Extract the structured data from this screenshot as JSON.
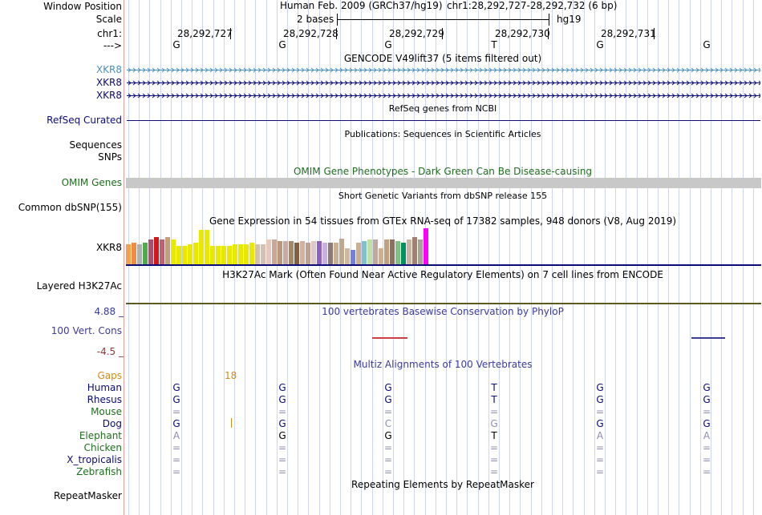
{
  "header": {
    "window_position_label": "Window Position",
    "scale_label": "Scale",
    "chrom_label": "chr1:",
    "strand_label": "--->",
    "assembly": "Human Feb. 2009 (GRCh37/hg19)",
    "position": "chr1:28,292,727-28,292,732 (6 bp)",
    "scale_text": "2 bases",
    "db": "hg19",
    "coords": [
      "28,292,727",
      "28,292,728",
      "28,292,729",
      "28,292,730",
      "28,292,731"
    ],
    "bases": [
      "G",
      "G",
      "G",
      "T",
      "G",
      "G"
    ]
  },
  "gencode": {
    "title": "GENCODE V49lift37 (5 items filtered out)",
    "items": [
      {
        "label": "XKR8",
        "color": "#4a90c0"
      },
      {
        "label": "XKR8",
        "color": "#0c0c78"
      },
      {
        "label": "XKR8",
        "color": "#0c0c78"
      }
    ]
  },
  "refseq": {
    "title": "RefSeq genes from NCBI",
    "label": "RefSeq Curated",
    "color": "#0c0c78"
  },
  "publications": {
    "title": "Publications: Sequences in Scientific Articles",
    "label1": "Sequences",
    "label2": "SNPs"
  },
  "omim": {
    "title": "OMIM Gene Phenotypes - Dark Green Can Be Disease-causing",
    "label": "OMIM Genes",
    "color": "#1e6e1e"
  },
  "dbsnp": {
    "title": "Short Genetic Variants from dbSNP release 155",
    "label": "Common dbSNP(155)"
  },
  "gtex": {
    "title": "Gene Expression in 54 tissues from GTEx RNA-seq of 17382 samples, 948 donors (V8, Aug 2019)",
    "label": "XKR8",
    "values": [
      0.55,
      0.6,
      0.55,
      0.6,
      0.7,
      0.75,
      0.7,
      0.75,
      0.7,
      0.5,
      0.5,
      0.55,
      0.6,
      0.95,
      0.95,
      0.5,
      0.5,
      0.5,
      0.5,
      0.55,
      0.55,
      0.55,
      0.6,
      0.55,
      0.55,
      0.7,
      0.7,
      0.65,
      0.65,
      0.65,
      0.6,
      0.65,
      0.6,
      0.65,
      0.65,
      0.6,
      0.6,
      0.6,
      0.72,
      0.45,
      0.4,
      0.6,
      0.65,
      0.7,
      0.7,
      0.45,
      0.7,
      0.7,
      0.65,
      0.6,
      0.7,
      0.75,
      0.7,
      1.0
    ],
    "colors": [
      "#f5a050",
      "#f08c40",
      "#b0b0b0",
      "#50aa50",
      "#b04c6c",
      "#d01818",
      "#c06070",
      "#c0a080",
      "#e8e800",
      "#e8e800",
      "#e8e800",
      "#e8e800",
      "#e8e800",
      "#e8e800",
      "#e8e800",
      "#e8e800",
      "#e8e800",
      "#e8e800",
      "#e8e800",
      "#e8e800",
      "#e8e800",
      "#e8e800",
      "#e8e800",
      "#d8c0a8",
      "#d8c0b0",
      "#e8c8b8",
      "#c8a898",
      "#b89878",
      "#c8a8a8",
      "#a08868",
      "#806040",
      "#d4b0a0",
      "#c0a090",
      "#e0c8c8",
      "#9060c0",
      "#c8b0e0",
      "#907878",
      "#c8b090",
      "#c0a890",
      "#d0b8a0",
      "#7080e0",
      "#c8b090",
      "#80c0d0",
      "#c0e0a0",
      "#c0a8a0",
      "#d0b090",
      "#c0a080",
      "#8c7060",
      "#80c080",
      "#009060",
      "#c8b4a0",
      "#a08070",
      "#b0a090",
      "#ff00ff"
    ]
  },
  "h3k27ac": {
    "title": "H3K27Ac Mark (Often Found Near Active Regulatory Elements) on 7 cell lines from ENCODE",
    "label": "Layered H3K27Ac"
  },
  "cons": {
    "title": "100 vertebrates Basewise Conservation by PhyloP",
    "label": "100 Vert. Cons",
    "top": "4.88 _",
    "bottom": "-4.5 _",
    "color": "#3c3c9c",
    "neg_color": "#8c3c3c"
  },
  "multiz": {
    "title": "Multiz Alignments of 100 Vertebrates",
    "gaps_label": "Gaps",
    "gaps_value": "18",
    "gaps_color": "#d48a16",
    "species": [
      {
        "name": "Human",
        "color": "#0c0c78",
        "bases": [
          "G",
          "G",
          "G",
          "T",
          "G",
          "G"
        ],
        "faded": [
          false,
          false,
          false,
          false,
          false,
          false
        ]
      },
      {
        "name": "Rhesus",
        "color": "#0c0c78",
        "bases": [
          "G",
          "G",
          "G",
          "T",
          "G",
          "G"
        ],
        "faded": [
          false,
          false,
          false,
          false,
          false,
          false
        ]
      },
      {
        "name": "Mouse",
        "color": "#1e6e1e",
        "bases": [
          "=",
          "=",
          "=",
          "=",
          "=",
          "="
        ],
        "faded": [
          true,
          true,
          true,
          true,
          true,
          true
        ]
      },
      {
        "name": "Dog",
        "color": "#0c0c78",
        "bases": [
          "G",
          "G",
          "C",
          "G",
          "G",
          "G"
        ],
        "faded": [
          false,
          false,
          true,
          true,
          false,
          false
        ]
      },
      {
        "name": "Elephant",
        "color": "#1e6e1e",
        "bases": [
          "A",
          "G",
          "G",
          "T",
          "A",
          "A"
        ],
        "faded": [
          true,
          false,
          false,
          false,
          true,
          true
        ]
      },
      {
        "name": "Chicken",
        "color": "#1e6e1e",
        "bases": [
          "=",
          "=",
          "=",
          "=",
          "=",
          "="
        ],
        "faded": [
          true,
          true,
          true,
          true,
          true,
          true
        ]
      },
      {
        "name": "X_tropicalis",
        "color": "#0c0c78",
        "bases": [
          "=",
          "=",
          "=",
          "=",
          "=",
          "="
        ],
        "faded": [
          true,
          true,
          true,
          true,
          true,
          true
        ]
      },
      {
        "name": "Zebrafish",
        "color": "#1e6e1e",
        "bases": [
          "=",
          "=",
          "=",
          "=",
          "=",
          "="
        ],
        "faded": [
          true,
          true,
          true,
          true,
          true,
          true
        ]
      }
    ]
  },
  "repeatmasker": {
    "title": "Repeating Elements by RepeatMasker",
    "label": "RepeatMasker"
  }
}
